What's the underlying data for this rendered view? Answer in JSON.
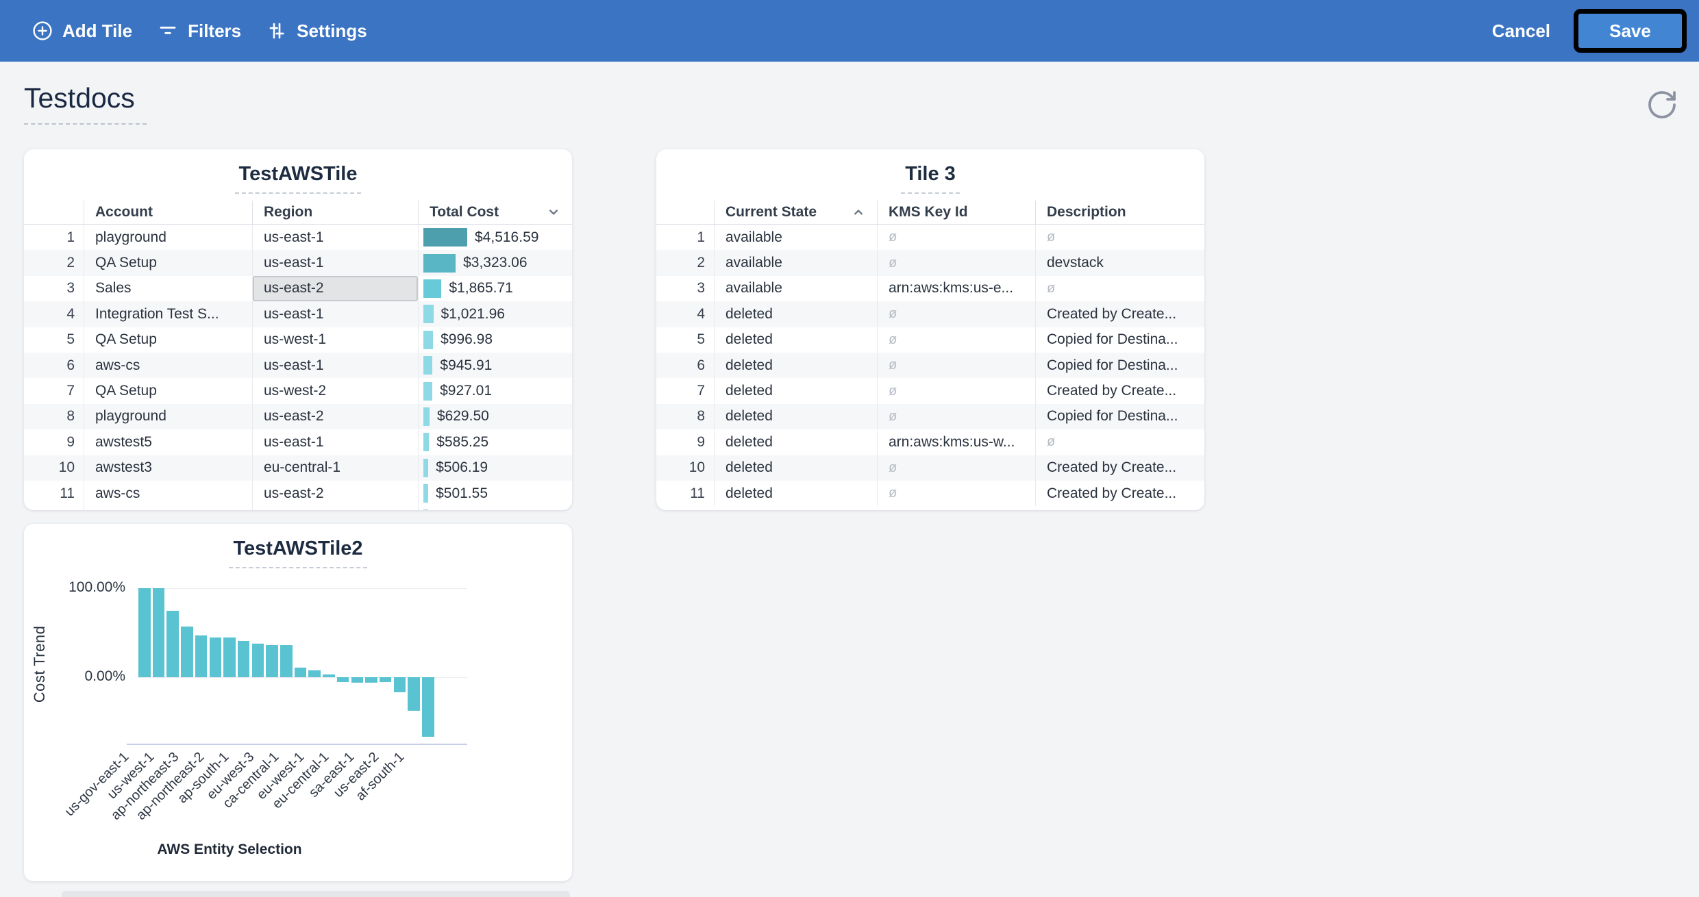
{
  "toolbar": {
    "add_tile_label": "Add Tile",
    "filters_label": "Filters",
    "settings_label": "Settings",
    "cancel_label": "Cancel",
    "save_label": "Save",
    "bar_color": "#3a74c3",
    "save_button_color": "#4285d2"
  },
  "page": {
    "title": "Testdocs"
  },
  "tiles": {
    "aws_table": {
      "title": "TestAWSTile",
      "columns": [
        "Account",
        "Region",
        "Total Cost"
      ],
      "sorted_column": "Total Cost",
      "sort_direction": "desc",
      "rows": [
        {
          "num": "1",
          "account": "playground",
          "region": "us-east-1",
          "total_cost": "$4,516.59",
          "cost_value": 4516.59,
          "bar_color": "#4e9fae"
        },
        {
          "num": "2",
          "account": "QA Setup",
          "region": "us-east-1",
          "total_cost": "$3,323.06",
          "cost_value": 3323.06,
          "bar_color": "#58b6c5"
        },
        {
          "num": "3",
          "account": "Sales",
          "region": "us-east-2",
          "total_cost": "$1,865.71",
          "cost_value": 1865.71,
          "bar_color": "#66cad9",
          "region_selected": true
        },
        {
          "num": "4",
          "account": "Integration Test S...",
          "region": "us-east-1",
          "total_cost": "$1,021.96",
          "cost_value": 1021.96,
          "bar_color": "#8ed9e6"
        },
        {
          "num": "5",
          "account": "QA Setup",
          "region": "us-west-1",
          "total_cost": "$996.98",
          "cost_value": 996.98,
          "bar_color": "#8ed9e6"
        },
        {
          "num": "6",
          "account": "aws-cs",
          "region": "us-east-1",
          "total_cost": "$945.91",
          "cost_value": 945.91,
          "bar_color": "#8ed9e6"
        },
        {
          "num": "7",
          "account": "QA Setup",
          "region": "us-west-2",
          "total_cost": "$927.01",
          "cost_value": 927.01,
          "bar_color": "#8ed9e6"
        },
        {
          "num": "8",
          "account": "playground",
          "region": "us-east-2",
          "total_cost": "$629.50",
          "cost_value": 629.5,
          "bar_color": "#8ed9e6"
        },
        {
          "num": "9",
          "account": "awstest5",
          "region": "us-east-1",
          "total_cost": "$585.25",
          "cost_value": 585.25,
          "bar_color": "#8ed9e6"
        },
        {
          "num": "10",
          "account": "awstest3",
          "region": "eu-central-1",
          "total_cost": "$506.19",
          "cost_value": 506.19,
          "bar_color": "#8ed9e6"
        },
        {
          "num": "11",
          "account": "aws-cs",
          "region": "us-east-2",
          "total_cost": "$501.55",
          "cost_value": 501.55,
          "bar_color": "#8ed9e6"
        }
      ]
    },
    "tile3": {
      "title": "Tile 3",
      "columns": [
        "Current State",
        "KMS Key Id",
        "Description"
      ],
      "sorted_column": "Current State",
      "sort_direction": "asc",
      "null_symbol": "ø",
      "rows": [
        {
          "num": "1",
          "current_state": "available",
          "kms_key_id": null,
          "description": null
        },
        {
          "num": "2",
          "current_state": "available",
          "kms_key_id": null,
          "description": "devstack"
        },
        {
          "num": "3",
          "current_state": "available",
          "kms_key_id": "arn:aws:kms:us-e...",
          "description": null
        },
        {
          "num": "4",
          "current_state": "deleted",
          "kms_key_id": null,
          "description": "Created by Create..."
        },
        {
          "num": "5",
          "current_state": "deleted",
          "kms_key_id": null,
          "description": "Copied for Destina..."
        },
        {
          "num": "6",
          "current_state": "deleted",
          "kms_key_id": null,
          "description": "Copied for Destina..."
        },
        {
          "num": "7",
          "current_state": "deleted",
          "kms_key_id": null,
          "description": "Created by Create..."
        },
        {
          "num": "8",
          "current_state": "deleted",
          "kms_key_id": null,
          "description": "Copied for Destina..."
        },
        {
          "num": "9",
          "current_state": "deleted",
          "kms_key_id": "arn:aws:kms:us-w...",
          "description": null
        },
        {
          "num": "10",
          "current_state": "deleted",
          "kms_key_id": null,
          "description": "Created by Create..."
        },
        {
          "num": "11",
          "current_state": "deleted",
          "kms_key_id": null,
          "description": "Created by Create..."
        }
      ]
    },
    "chart_tile": {
      "title": "TestAWSTile2"
    }
  },
  "chart_data": {
    "type": "bar",
    "title": "TestAWSTile2",
    "xlabel": "AWS Entity Selection",
    "ylabel": "Cost Trend",
    "bar_color": "#5ac3d1",
    "ylim": [
      -75,
      108
    ],
    "grid": true,
    "y_ticks": [
      {
        "value": 100,
        "label": "100.00%"
      },
      {
        "value": 0,
        "label": "0.00%"
      }
    ],
    "x_tick_labels": [
      "us-gov-east-1",
      "us-west-1",
      "ap-northeast-3",
      "ap-northeast-2",
      "ap-south-1",
      "eu-west-3",
      "ca-central-1",
      "eu-west-1",
      "eu-central-1",
      "sa-east-1",
      "us-east-2",
      "af-south-1"
    ],
    "values_pct": [
      100,
      100,
      75,
      57,
      47,
      45,
      45,
      41,
      38,
      36,
      36,
      11,
      8,
      3,
      -5,
      -6,
      -6,
      -5,
      -17,
      -38,
      -67
    ]
  }
}
